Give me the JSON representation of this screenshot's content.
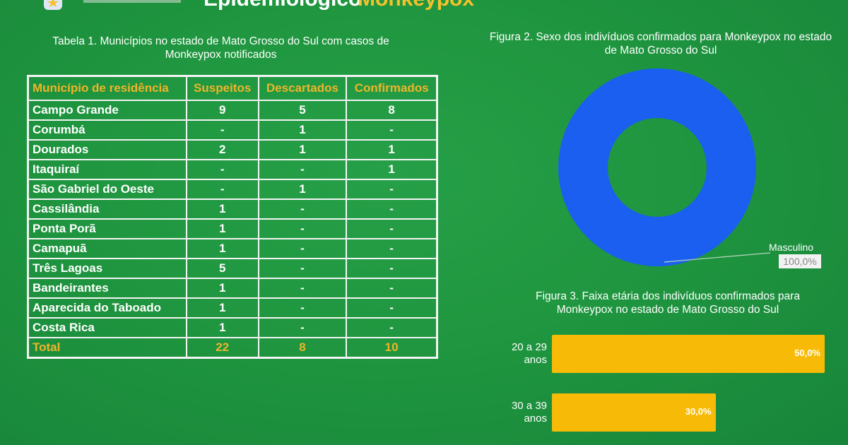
{
  "header": {
    "title": "Epidemiológico",
    "title_accent": "Monkeypox"
  },
  "table": {
    "caption": "Tabela 1. Municípios no estado de Mato Grosso do Sul com casos de Monkeypox notificados",
    "headers": [
      "Município de residência",
      "Suspeitos",
      "Descartados",
      "Confirmados"
    ],
    "rows": [
      [
        "Campo Grande",
        "9",
        "5",
        "8"
      ],
      [
        "Corumbá",
        "-",
        "1",
        "-"
      ],
      [
        "Dourados",
        "2",
        "1",
        "1"
      ],
      [
        "Itaquiraí",
        "-",
        "-",
        "1"
      ],
      [
        "São Gabriel do Oeste",
        "-",
        "1",
        "-"
      ],
      [
        "Cassilândia",
        "1",
        "-",
        "-"
      ],
      [
        "Ponta Porã",
        "1",
        "-",
        "-"
      ],
      [
        "Camapuã",
        "1",
        "-",
        "-"
      ],
      [
        "Três Lagoas",
        "5",
        "-",
        "-"
      ],
      [
        "Bandeirantes",
        "1",
        "-",
        "-"
      ],
      [
        "Aparecida do Taboado",
        "1",
        "-",
        "-"
      ],
      [
        "Costa Rica",
        "1",
        "-",
        "-"
      ]
    ],
    "total": [
      "Total",
      "22",
      "8",
      "10"
    ]
  },
  "chart_data": [
    {
      "type": "pie",
      "title": "Figura 2. Sexo dos indivíduos confirmados para Monkeypox no estado de Mato Grosso do Sul",
      "categories": [
        "Masculino"
      ],
      "values": [
        100.0
      ],
      "value_labels": [
        "100,0%"
      ],
      "colors": [
        "#1a5ff0"
      ],
      "hole": true,
      "legend": "right"
    },
    {
      "type": "bar",
      "orientation": "horizontal",
      "title": "Figura 3. Faixa etária dos indivíduos confirmados para Monkeypox no estado de Mato Grosso do Sul",
      "categories": [
        "20 a 29 anos",
        "30 a 39 anos"
      ],
      "values": [
        50.0,
        30.0
      ],
      "value_labels": [
        "50,0%",
        "30,0%"
      ],
      "colors": [
        "#f7bb07"
      ]
    }
  ]
}
